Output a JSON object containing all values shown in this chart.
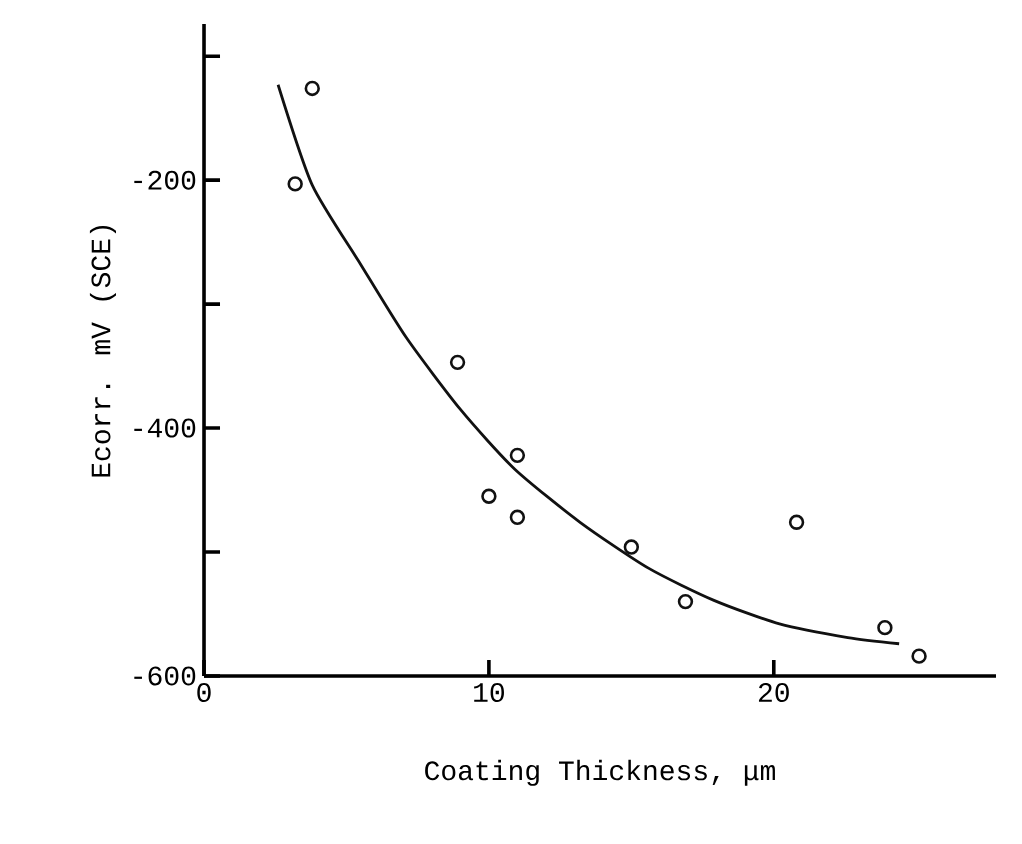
{
  "chart_data": {
    "type": "scatter",
    "xlabel": "Coating Thickness, μm",
    "ylabel": "Ecorr. mV (SCE)",
    "xlim": [
      0,
      27.8
    ],
    "ylim": [
      -600,
      -74
    ],
    "xticks": [
      0,
      10,
      20
    ],
    "yticks": [
      {
        "value": -100,
        "label": null
      },
      -200,
      {
        "value": -300,
        "label": null
      },
      -400,
      {
        "value": -500,
        "label": null
      },
      -600
    ],
    "marker": "circle",
    "grid": false,
    "series": [
      {
        "color": "#111111",
        "x": [
          3.8,
          3.2,
          8.9,
          11.0,
          10.0,
          11.0,
          15.0,
          16.9,
          20.8,
          23.9,
          25.1
        ],
        "values": [
          -126,
          -203,
          -347,
          -422,
          -455,
          -472,
          -496,
          -540,
          -476,
          -561,
          -584
        ]
      },
      {
        "type": "line",
        "color": "#111111",
        "marker": "none",
        "x": [
          2.6,
          3.8,
          5.5,
          7.1,
          9.0,
          10.9,
          13.2,
          15.6,
          17.9,
          20.2,
          22.6,
          24.4
        ],
        "values": [
          -123,
          -204,
          -268,
          -327,
          -385,
          -433,
          -476,
          -513,
          -539,
          -558,
          -569,
          -574
        ]
      }
    ]
  }
}
